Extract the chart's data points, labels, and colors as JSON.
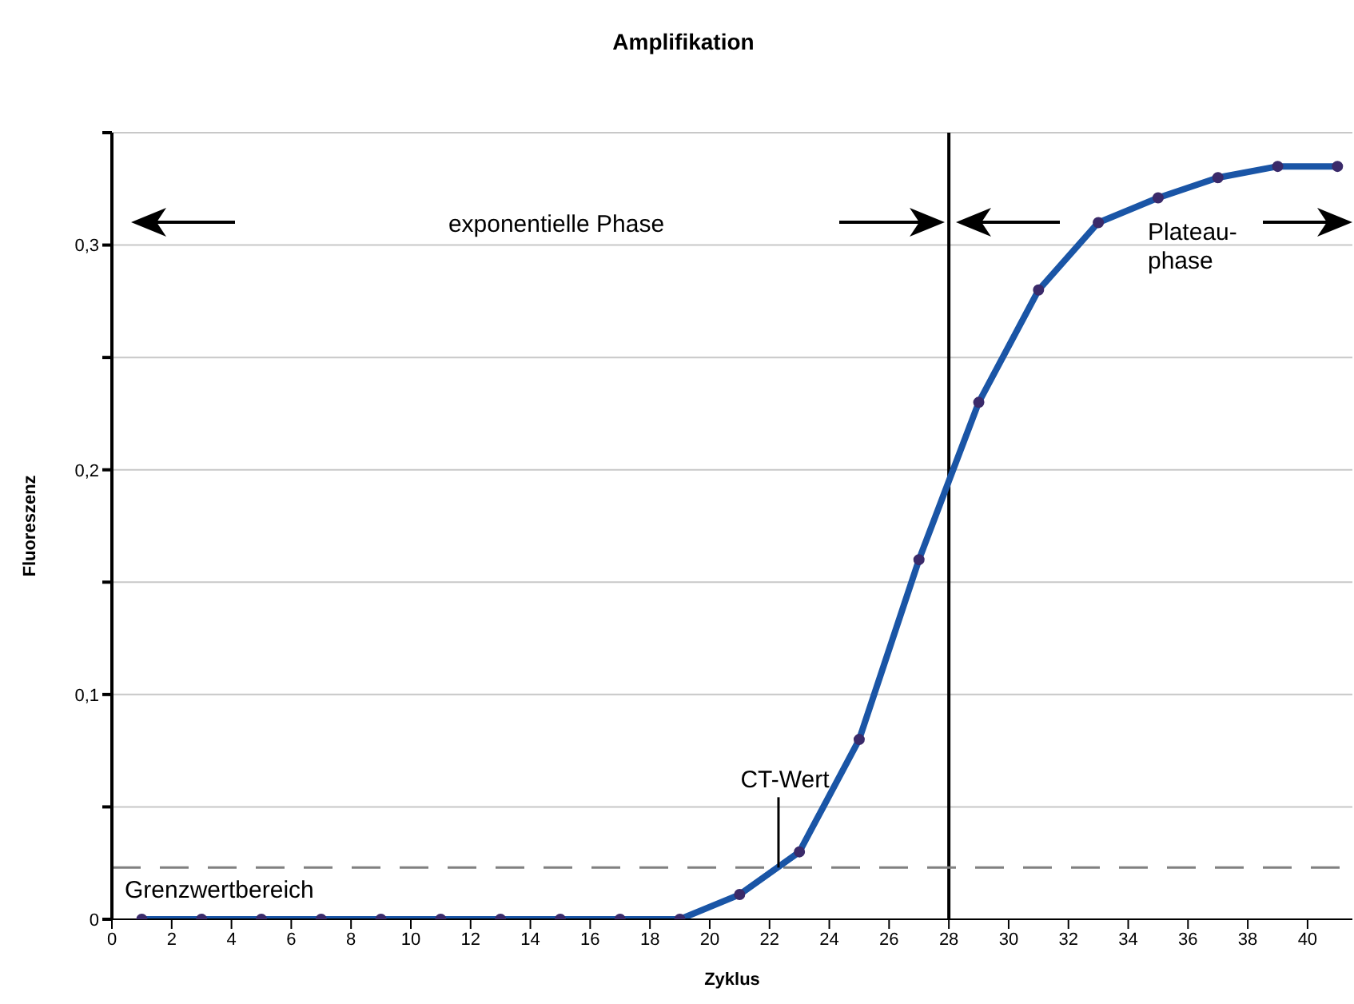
{
  "chart_data": {
    "type": "line",
    "title": "Amplifikation",
    "xlabel": "Zyklus",
    "ylabel": "Fluoreszenz",
    "x": [
      1,
      3,
      5,
      7,
      9,
      11,
      13,
      15,
      17,
      19,
      21,
      23,
      25,
      27,
      29,
      31,
      33,
      35,
      37,
      39,
      41
    ],
    "series": [
      {
        "color": "#1a55a6",
        "values": [
          0,
          0,
          0,
          0,
          0,
          0,
          0,
          0,
          0,
          0,
          0.011,
          0.03,
          0.08,
          0.16,
          0.23,
          0.28,
          0.31,
          0.321,
          0.33,
          0.335,
          0.335
        ]
      }
    ],
    "xlim": [
      0,
      41.5
    ],
    "xticks": [
      0,
      2,
      4,
      6,
      8,
      10,
      12,
      14,
      16,
      18,
      20,
      22,
      24,
      26,
      28,
      30,
      32,
      34,
      36,
      38,
      40
    ],
    "ylim": [
      0,
      0.35
    ],
    "yticks": [
      {
        "value": 0,
        "label": "0"
      },
      {
        "value": 0.05,
        "label": null
      },
      {
        "value": 0.1,
        "label": "0,1"
      },
      {
        "value": 0.15,
        "label": null
      },
      {
        "value": 0.2,
        "label": "0,2"
      },
      {
        "value": 0.25,
        "label": null
      },
      {
        "value": 0.3,
        "label": "0,3"
      },
      {
        "value": 0.35,
        "label": null
      }
    ],
    "grid": "y",
    "marker": "circle",
    "line_style": "solid",
    "ref_lines": [
      {
        "axis": "x",
        "value": 28,
        "color": "#000000",
        "line_style": "solid"
      },
      {
        "axis": "y",
        "value": 0.023,
        "label": "Grenzwertbereich",
        "color": "#808080",
        "line_style": "dashed"
      }
    ],
    "annotations": [
      "exponentielle Phase",
      "Plateau-\nphase",
      {
        "text": "CT-Wert",
        "x": 22.3,
        "y": 0.023
      }
    ]
  }
}
